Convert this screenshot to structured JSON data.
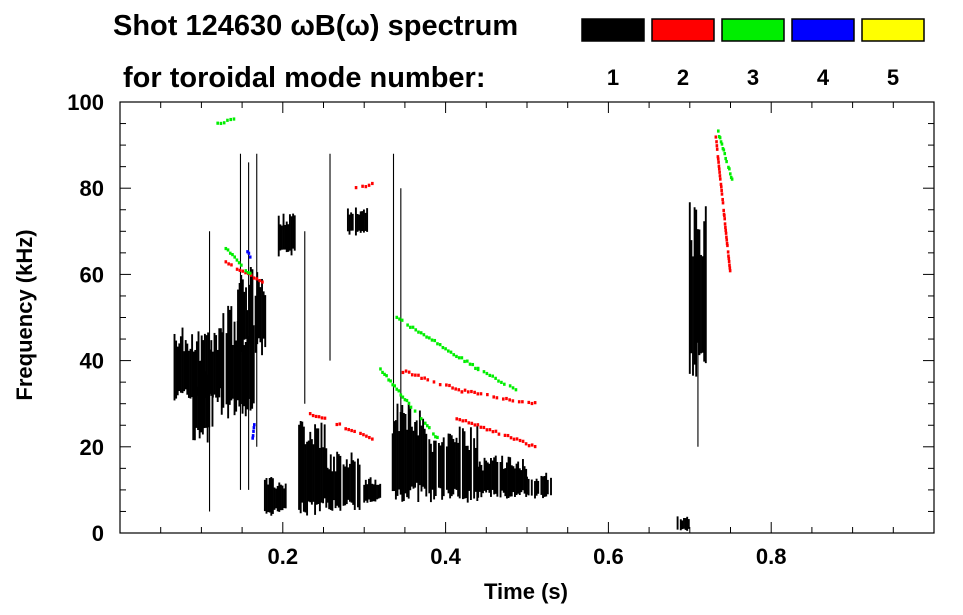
{
  "chart_data": {
    "type": "heatmap",
    "title_line1": "Shot 124630 ωB(ω) spectrum",
    "title_line2": "for toroidal mode number:",
    "xlabel": "Time (s)",
    "ylabel": "Frequency (kHz)",
    "xlim": [
      0.0,
      1.0
    ],
    "ylim": [
      0,
      100
    ],
    "x_ticks": [
      0.2,
      0.4,
      0.6,
      0.8
    ],
    "x_tick_labels": [
      "0.2",
      "0.4",
      "0.6",
      "0.8"
    ],
    "y_ticks": [
      0,
      20,
      40,
      60,
      80,
      100
    ],
    "y_tick_labels": [
      "0",
      "20",
      "40",
      "60",
      "80",
      "100"
    ],
    "legend": [
      {
        "label": "1",
        "color": "#000000"
      },
      {
        "label": "2",
        "color": "#ff0000"
      },
      {
        "label": "3",
        "color": "#00ee00"
      },
      {
        "label": "4",
        "color": "#0000ff"
      },
      {
        "label": "5",
        "color": "#ffff00"
      }
    ],
    "blobs": [
      {
        "mode": 1,
        "t": [
          0.065,
          0.125
        ],
        "f": [
          30,
          48
        ]
      },
      {
        "mode": 1,
        "t": [
          0.09,
          0.115
        ],
        "f": [
          21,
          40
        ]
      },
      {
        "mode": 1,
        "t": [
          0.125,
          0.165
        ],
        "f": [
          26,
          53
        ]
      },
      {
        "mode": 1,
        "t": [
          0.145,
          0.18
        ],
        "f": [
          41,
          62
        ]
      },
      {
        "mode": 1,
        "t": [
          0.178,
          0.205
        ],
        "f": [
          4,
          13
        ]
      },
      {
        "mode": 1,
        "t": [
          0.195,
          0.215
        ],
        "f": [
          64,
          75
        ]
      },
      {
        "mode": 1,
        "t": [
          0.22,
          0.255
        ],
        "f": [
          4,
          26
        ]
      },
      {
        "mode": 1,
        "t": [
          0.255,
          0.3
        ],
        "f": [
          5,
          19
        ]
      },
      {
        "mode": 1,
        "t": [
          0.3,
          0.32
        ],
        "f": [
          7,
          13
        ]
      },
      {
        "mode": 1,
        "t": [
          0.28,
          0.305
        ],
        "f": [
          69,
          76
        ]
      },
      {
        "mode": 1,
        "t": [
          0.335,
          0.38
        ],
        "f": [
          7,
          31
        ]
      },
      {
        "mode": 1,
        "t": [
          0.38,
          0.44
        ],
        "f": [
          7,
          25
        ]
      },
      {
        "mode": 1,
        "t": [
          0.44,
          0.5
        ],
        "f": [
          8,
          18
        ]
      },
      {
        "mode": 1,
        "t": [
          0.5,
          0.53
        ],
        "f": [
          8,
          14
        ]
      },
      {
        "mode": 1,
        "t": [
          0.685,
          0.702
        ],
        "f": [
          0.5,
          4
        ]
      },
      {
        "mode": 1,
        "t": [
          0.7,
          0.72
        ],
        "f": [
          36,
          78
        ]
      }
    ],
    "streaks": [
      {
        "mode": 1,
        "t": 0.11,
        "f": [
          5,
          70
        ]
      },
      {
        "mode": 1,
        "t": 0.148,
        "f": [
          10,
          88
        ]
      },
      {
        "mode": 1,
        "t": 0.158,
        "f": [
          10,
          86
        ]
      },
      {
        "mode": 1,
        "t": 0.168,
        "f": [
          20,
          88
        ]
      },
      {
        "mode": 1,
        "t": 0.227,
        "f": [
          30,
          70
        ]
      },
      {
        "mode": 1,
        "t": 0.258,
        "f": [
          40,
          88
        ]
      },
      {
        "mode": 1,
        "t": 0.336,
        "f": [
          10,
          88
        ]
      },
      {
        "mode": 1,
        "t": 0.345,
        "f": [
          10,
          80
        ]
      },
      {
        "mode": 1,
        "t": 0.71,
        "f": [
          20,
          70
        ]
      }
    ],
    "chirps": [
      {
        "mode": 2,
        "t": [
          0.13,
          0.175
        ],
        "f": [
          63,
          58
        ]
      },
      {
        "mode": 2,
        "t": [
          0.23,
          0.31
        ],
        "f": [
          28,
          22
        ]
      },
      {
        "mode": 2,
        "t": [
          0.34,
          0.42
        ],
        "f": [
          38,
          33
        ]
      },
      {
        "mode": 2,
        "t": [
          0.42,
          0.51
        ],
        "f": [
          33,
          30
        ]
      },
      {
        "mode": 2,
        "t": [
          0.41,
          0.51
        ],
        "f": [
          27,
          20
        ]
      },
      {
        "mode": 2,
        "t": [
          0.29,
          0.31
        ],
        "f": [
          80,
          81
        ]
      },
      {
        "mode": 2,
        "t": [
          0.732,
          0.75
        ],
        "f": [
          92,
          60
        ]
      },
      {
        "mode": 3,
        "t": [
          0.12,
          0.14
        ],
        "f": [
          95,
          96
        ]
      },
      {
        "mode": 3,
        "t": [
          0.13,
          0.16
        ],
        "f": [
          66,
          60
        ]
      },
      {
        "mode": 3,
        "t": [
          0.34,
          0.44
        ],
        "f": [
          50,
          38
        ]
      },
      {
        "mode": 3,
        "t": [
          0.44,
          0.49
        ],
        "f": [
          38,
          33
        ]
      },
      {
        "mode": 3,
        "t": [
          0.32,
          0.39
        ],
        "f": [
          38,
          22
        ]
      },
      {
        "mode": 3,
        "t": [
          0.735,
          0.752
        ],
        "f": [
          93,
          82
        ]
      },
      {
        "mode": 4,
        "t": [
          0.155,
          0.16
        ],
        "f": [
          66,
          64
        ]
      },
      {
        "mode": 4,
        "t": [
          0.163,
          0.165
        ],
        "f": [
          22,
          25
        ]
      }
    ]
  }
}
